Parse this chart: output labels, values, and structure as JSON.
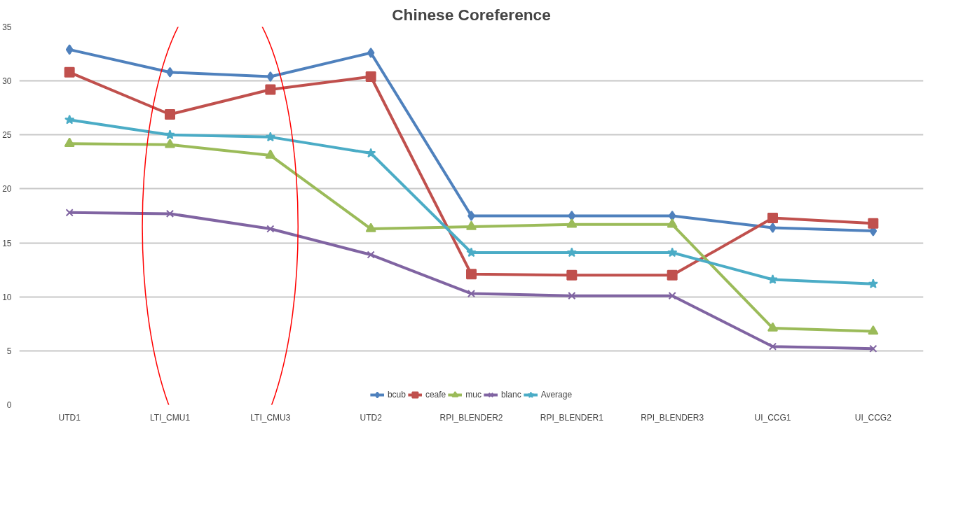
{
  "chart_data": {
    "type": "line",
    "title": "Chinese Coreference",
    "categories": [
      "UTD1",
      "LTI_CMU1",
      "LTI_CMU3",
      "UTD2",
      "RPI_BLENDER2",
      "RPI_BLENDER1",
      "RPI_BLENDER3",
      "UI_CCG1",
      "UI_CCG2"
    ],
    "series": [
      {
        "name": "bcub",
        "color": "#4f81bd",
        "marker": "diamond",
        "values": [
          32.9,
          30.8,
          30.4,
          32.6,
          17.5,
          17.5,
          17.5,
          16.4,
          16.1
        ]
      },
      {
        "name": "ceafe",
        "color": "#c0504d",
        "marker": "square",
        "values": [
          30.8,
          26.9,
          29.2,
          30.4,
          12.1,
          12.0,
          12.0,
          17.3,
          16.8
        ]
      },
      {
        "name": "muc",
        "color": "#9bbb59",
        "marker": "triangle",
        "values": [
          24.2,
          24.1,
          23.1,
          16.3,
          16.5,
          16.7,
          16.7,
          7.1,
          6.8
        ]
      },
      {
        "name": "blanc",
        "color": "#8064a2",
        "marker": "cross",
        "values": [
          17.8,
          17.7,
          16.3,
          13.9,
          10.3,
          10.1,
          10.1,
          5.4,
          5.2
        ]
      },
      {
        "name": "Average",
        "color": "#4bacc6",
        "marker": "star",
        "values": [
          26.4,
          25.0,
          24.8,
          23.3,
          14.1,
          14.1,
          14.1,
          11.6,
          11.2
        ]
      }
    ],
    "ylim": [
      0,
      35
    ],
    "yticks": [
      0,
      5,
      10,
      15,
      20,
      25,
      30,
      35
    ],
    "grid": "y",
    "legend": "bottom",
    "line_style": "solid"
  }
}
